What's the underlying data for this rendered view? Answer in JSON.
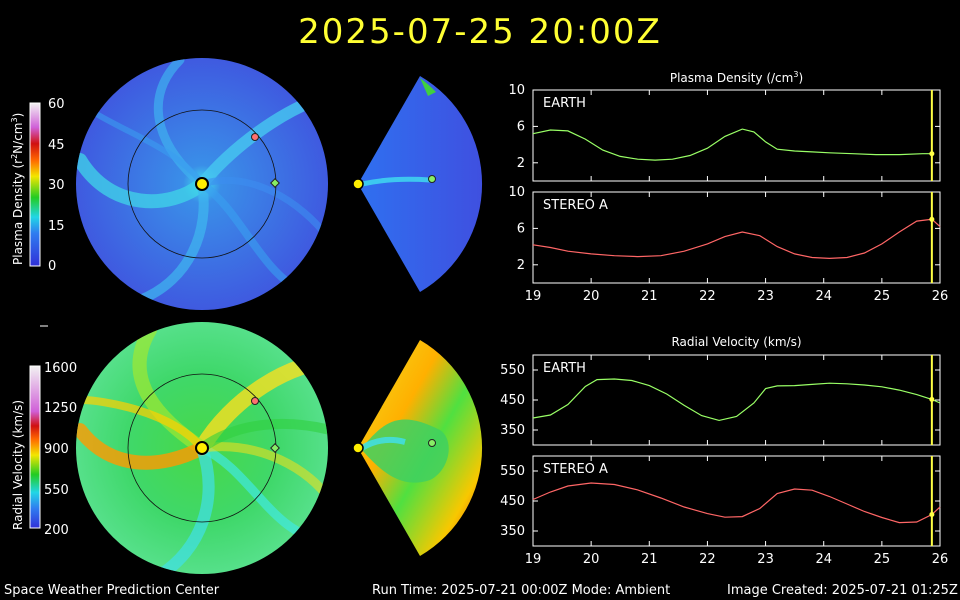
{
  "header": {
    "timestamp": "2025-07-25  20:00Z"
  },
  "footer": {
    "left": "Space Weather Prediction Center",
    "center": "Run Time: 2025-07-21 00:00Z  Mode: Ambient",
    "right": "Image Created: 2025-07-21 01:25Z"
  },
  "colorbars": {
    "density": {
      "label": "Plasma Density (r",
      "label_sup": "2",
      "label_rest": "N/cm",
      "label_sup2": "3",
      "label_end": ")",
      "ticks": [
        "60",
        "45",
        "30",
        "15",
        "0"
      ]
    },
    "velocity": {
      "label": "Radial Velocity (km/s)",
      "ticks": [
        "1600",
        "1250",
        "900",
        "550",
        "200"
      ]
    }
  },
  "colors": {
    "title": "#ffff33",
    "earth_line": "#99ff66",
    "stereo_line": "#ff6666",
    "now_line": "#ffff44",
    "frame": "#ffffff"
  },
  "chart_data": [
    {
      "type": "line",
      "title": "Plasma Density (/cm",
      "title_sup": "3",
      "title_end": ")",
      "xlim": [
        19,
        26
      ],
      "xticks": [
        "19",
        "20",
        "21",
        "22",
        "23",
        "24",
        "25",
        "26"
      ],
      "panels": [
        {
          "name": "EARTH",
          "ylim": [
            0,
            10
          ],
          "yticks": [
            "10",
            "6",
            "2"
          ],
          "color": "#99ff66",
          "x": [
            19.0,
            19.3,
            19.6,
            19.9,
            20.2,
            20.5,
            20.8,
            21.1,
            21.4,
            21.7,
            22.0,
            22.3,
            22.6,
            22.8,
            23.0,
            23.2,
            23.5,
            23.8,
            24.1,
            24.5,
            24.9,
            25.3,
            25.7,
            25.86
          ],
          "y": [
            5.2,
            5.6,
            5.5,
            4.6,
            3.4,
            2.7,
            2.4,
            2.3,
            2.4,
            2.8,
            3.6,
            4.9,
            5.7,
            5.4,
            4.3,
            3.5,
            3.3,
            3.2,
            3.1,
            3.0,
            2.9,
            2.9,
            3.0,
            3.0
          ]
        },
        {
          "name": "STEREO A",
          "ylim": [
            0,
            10
          ],
          "yticks": [
            "10",
            "6",
            "2"
          ],
          "color": "#ff6666",
          "x": [
            19.0,
            19.3,
            19.6,
            20.0,
            20.4,
            20.8,
            21.2,
            21.6,
            22.0,
            22.3,
            22.6,
            22.9,
            23.2,
            23.5,
            23.8,
            24.1,
            24.4,
            24.7,
            25.0,
            25.3,
            25.6,
            25.86,
            26.0
          ],
          "y": [
            4.2,
            3.9,
            3.5,
            3.2,
            3.0,
            2.9,
            3.0,
            3.5,
            4.3,
            5.1,
            5.6,
            5.2,
            4.0,
            3.2,
            2.8,
            2.7,
            2.8,
            3.3,
            4.3,
            5.6,
            6.8,
            7.0,
            6.2
          ]
        }
      ]
    },
    {
      "type": "line",
      "title": "Radial Velocity (km/s)",
      "xlim": [
        19,
        26
      ],
      "xticks": [
        "19",
        "20",
        "21",
        "22",
        "23",
        "24",
        "25",
        "26"
      ],
      "panels": [
        {
          "name": "EARTH",
          "ylim": [
            300,
            600
          ],
          "yticks": [
            "550",
            "450",
            "350"
          ],
          "color": "#99ff66",
          "x": [
            19.0,
            19.3,
            19.6,
            19.9,
            20.1,
            20.4,
            20.7,
            21.0,
            21.3,
            21.6,
            21.9,
            22.2,
            22.5,
            22.8,
            23.0,
            23.2,
            23.5,
            23.8,
            24.1,
            24.4,
            24.7,
            25.0,
            25.3,
            25.6,
            25.86,
            26.0
          ],
          "y": [
            390,
            400,
            435,
            495,
            518,
            520,
            515,
            498,
            470,
            432,
            398,
            382,
            395,
            440,
            488,
            497,
            498,
            502,
            506,
            504,
            500,
            494,
            483,
            468,
            452,
            440
          ]
        },
        {
          "name": "STEREO A",
          "ylim": [
            300,
            600
          ],
          "yticks": [
            "550",
            "450",
            "350"
          ],
          "color": "#ff6666",
          "x": [
            19.0,
            19.3,
            19.6,
            20.0,
            20.4,
            20.8,
            21.2,
            21.6,
            22.0,
            22.3,
            22.6,
            22.9,
            23.2,
            23.5,
            23.8,
            24.1,
            24.4,
            24.7,
            25.0,
            25.3,
            25.6,
            25.86,
            26.0
          ],
          "y": [
            455,
            480,
            500,
            510,
            505,
            487,
            460,
            430,
            408,
            396,
            398,
            425,
            475,
            490,
            486,
            465,
            440,
            415,
            395,
            378,
            380,
            405,
            430
          ]
        }
      ]
    }
  ],
  "now_marker": {
    "x": 25.86
  }
}
